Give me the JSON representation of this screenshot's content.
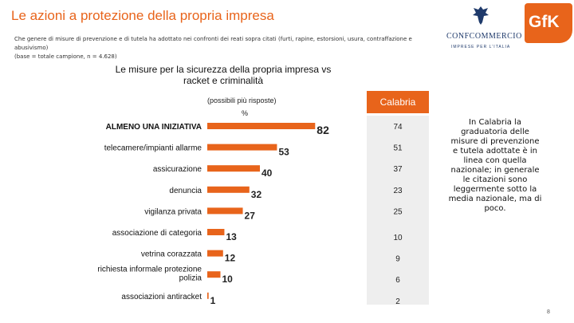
{
  "header": {
    "title": "Le azioni a protezione della propria impresa",
    "subtitle_line1": "Che genere di misure di prevenzione e di tutela ha adottato nei confronti dei reati sopra citati (furti, rapine, estorsioni, usura, contraffazione e abusivismo)",
    "subtitle_line2": "(base = totale campione, n = 4.628)"
  },
  "logos": {
    "confcommercio_name": "CONFCOMMERCIO",
    "confcommercio_tag": "IMPRESE PER L'ITALIA",
    "gfk_text": "GfK"
  },
  "chart_data": {
    "type": "bar",
    "orientation": "horizontal",
    "title": "Le misure per la sicurezza della propria impresa vs racket e criminalità",
    "note": "(possibili più risposte)",
    "unit": "%",
    "categories": [
      "ALMENO UNA INIZIATIVA",
      "telecamere/impianti allarme",
      "assicurazione",
      "denuncia",
      "vigilanza privata",
      "associazione di categoria",
      "vetrina corazzata",
      "richiesta informale protezione polizia",
      "associazioni antiracket"
    ],
    "values": [
      82,
      53,
      40,
      32,
      27,
      13,
      12,
      10,
      1
    ],
    "region": {
      "name": "Calabria",
      "values": [
        74,
        51,
        37,
        23,
        25,
        10,
        9,
        6,
        2
      ]
    },
    "bar_color": "#e8641b",
    "header_color": "#e8641b"
  },
  "side_note": "In Calabria la graduatoria delle misure di prevenzione e tutela adottate è in linea con quella nazionale; in generale le citazioni sono leggermente sotto la media nazionale, ma di poco.",
  "page_number": "8"
}
